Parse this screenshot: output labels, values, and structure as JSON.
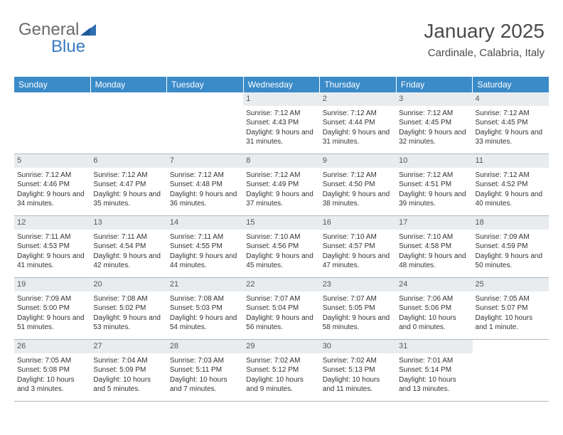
{
  "logo": {
    "text1": "General",
    "text2": "Blue"
  },
  "title": "January 2025",
  "location": "Cardinale, Calabria, Italy",
  "colors": {
    "header_bg": "#3b8bc9",
    "header_text": "#ffffff",
    "daynum_bg": "#e8ecef",
    "row_border": "#b0b8c0",
    "logo_gray": "#6a6a6a",
    "logo_blue": "#3b7bbf"
  },
  "weekdays": [
    "Sunday",
    "Monday",
    "Tuesday",
    "Wednesday",
    "Thursday",
    "Friday",
    "Saturday"
  ],
  "weeks": [
    [
      null,
      null,
      null,
      {
        "n": "1",
        "sunrise": "7:12 AM",
        "sunset": "4:43 PM",
        "daylight": "9 hours and 31 minutes."
      },
      {
        "n": "2",
        "sunrise": "7:12 AM",
        "sunset": "4:44 PM",
        "daylight": "9 hours and 31 minutes."
      },
      {
        "n": "3",
        "sunrise": "7:12 AM",
        "sunset": "4:45 PM",
        "daylight": "9 hours and 32 minutes."
      },
      {
        "n": "4",
        "sunrise": "7:12 AM",
        "sunset": "4:45 PM",
        "daylight": "9 hours and 33 minutes."
      }
    ],
    [
      {
        "n": "5",
        "sunrise": "7:12 AM",
        "sunset": "4:46 PM",
        "daylight": "9 hours and 34 minutes."
      },
      {
        "n": "6",
        "sunrise": "7:12 AM",
        "sunset": "4:47 PM",
        "daylight": "9 hours and 35 minutes."
      },
      {
        "n": "7",
        "sunrise": "7:12 AM",
        "sunset": "4:48 PM",
        "daylight": "9 hours and 36 minutes."
      },
      {
        "n": "8",
        "sunrise": "7:12 AM",
        "sunset": "4:49 PM",
        "daylight": "9 hours and 37 minutes."
      },
      {
        "n": "9",
        "sunrise": "7:12 AM",
        "sunset": "4:50 PM",
        "daylight": "9 hours and 38 minutes."
      },
      {
        "n": "10",
        "sunrise": "7:12 AM",
        "sunset": "4:51 PM",
        "daylight": "9 hours and 39 minutes."
      },
      {
        "n": "11",
        "sunrise": "7:12 AM",
        "sunset": "4:52 PM",
        "daylight": "9 hours and 40 minutes."
      }
    ],
    [
      {
        "n": "12",
        "sunrise": "7:11 AM",
        "sunset": "4:53 PM",
        "daylight": "9 hours and 41 minutes."
      },
      {
        "n": "13",
        "sunrise": "7:11 AM",
        "sunset": "4:54 PM",
        "daylight": "9 hours and 42 minutes."
      },
      {
        "n": "14",
        "sunrise": "7:11 AM",
        "sunset": "4:55 PM",
        "daylight": "9 hours and 44 minutes."
      },
      {
        "n": "15",
        "sunrise": "7:10 AM",
        "sunset": "4:56 PM",
        "daylight": "9 hours and 45 minutes."
      },
      {
        "n": "16",
        "sunrise": "7:10 AM",
        "sunset": "4:57 PM",
        "daylight": "9 hours and 47 minutes."
      },
      {
        "n": "17",
        "sunrise": "7:10 AM",
        "sunset": "4:58 PM",
        "daylight": "9 hours and 48 minutes."
      },
      {
        "n": "18",
        "sunrise": "7:09 AM",
        "sunset": "4:59 PM",
        "daylight": "9 hours and 50 minutes."
      }
    ],
    [
      {
        "n": "19",
        "sunrise": "7:09 AM",
        "sunset": "5:00 PM",
        "daylight": "9 hours and 51 minutes."
      },
      {
        "n": "20",
        "sunrise": "7:08 AM",
        "sunset": "5:02 PM",
        "daylight": "9 hours and 53 minutes."
      },
      {
        "n": "21",
        "sunrise": "7:08 AM",
        "sunset": "5:03 PM",
        "daylight": "9 hours and 54 minutes."
      },
      {
        "n": "22",
        "sunrise": "7:07 AM",
        "sunset": "5:04 PM",
        "daylight": "9 hours and 56 minutes."
      },
      {
        "n": "23",
        "sunrise": "7:07 AM",
        "sunset": "5:05 PM",
        "daylight": "9 hours and 58 minutes."
      },
      {
        "n": "24",
        "sunrise": "7:06 AM",
        "sunset": "5:06 PM",
        "daylight": "10 hours and 0 minutes."
      },
      {
        "n": "25",
        "sunrise": "7:05 AM",
        "sunset": "5:07 PM",
        "daylight": "10 hours and 1 minute."
      }
    ],
    [
      {
        "n": "26",
        "sunrise": "7:05 AM",
        "sunset": "5:08 PM",
        "daylight": "10 hours and 3 minutes."
      },
      {
        "n": "27",
        "sunrise": "7:04 AM",
        "sunset": "5:09 PM",
        "daylight": "10 hours and 5 minutes."
      },
      {
        "n": "28",
        "sunrise": "7:03 AM",
        "sunset": "5:11 PM",
        "daylight": "10 hours and 7 minutes."
      },
      {
        "n": "29",
        "sunrise": "7:02 AM",
        "sunset": "5:12 PM",
        "daylight": "10 hours and 9 minutes."
      },
      {
        "n": "30",
        "sunrise": "7:02 AM",
        "sunset": "5:13 PM",
        "daylight": "10 hours and 11 minutes."
      },
      {
        "n": "31",
        "sunrise": "7:01 AM",
        "sunset": "5:14 PM",
        "daylight": "10 hours and 13 minutes."
      },
      null
    ]
  ],
  "labels": {
    "sunrise": "Sunrise:",
    "sunset": "Sunset:",
    "daylight": "Daylight:"
  }
}
